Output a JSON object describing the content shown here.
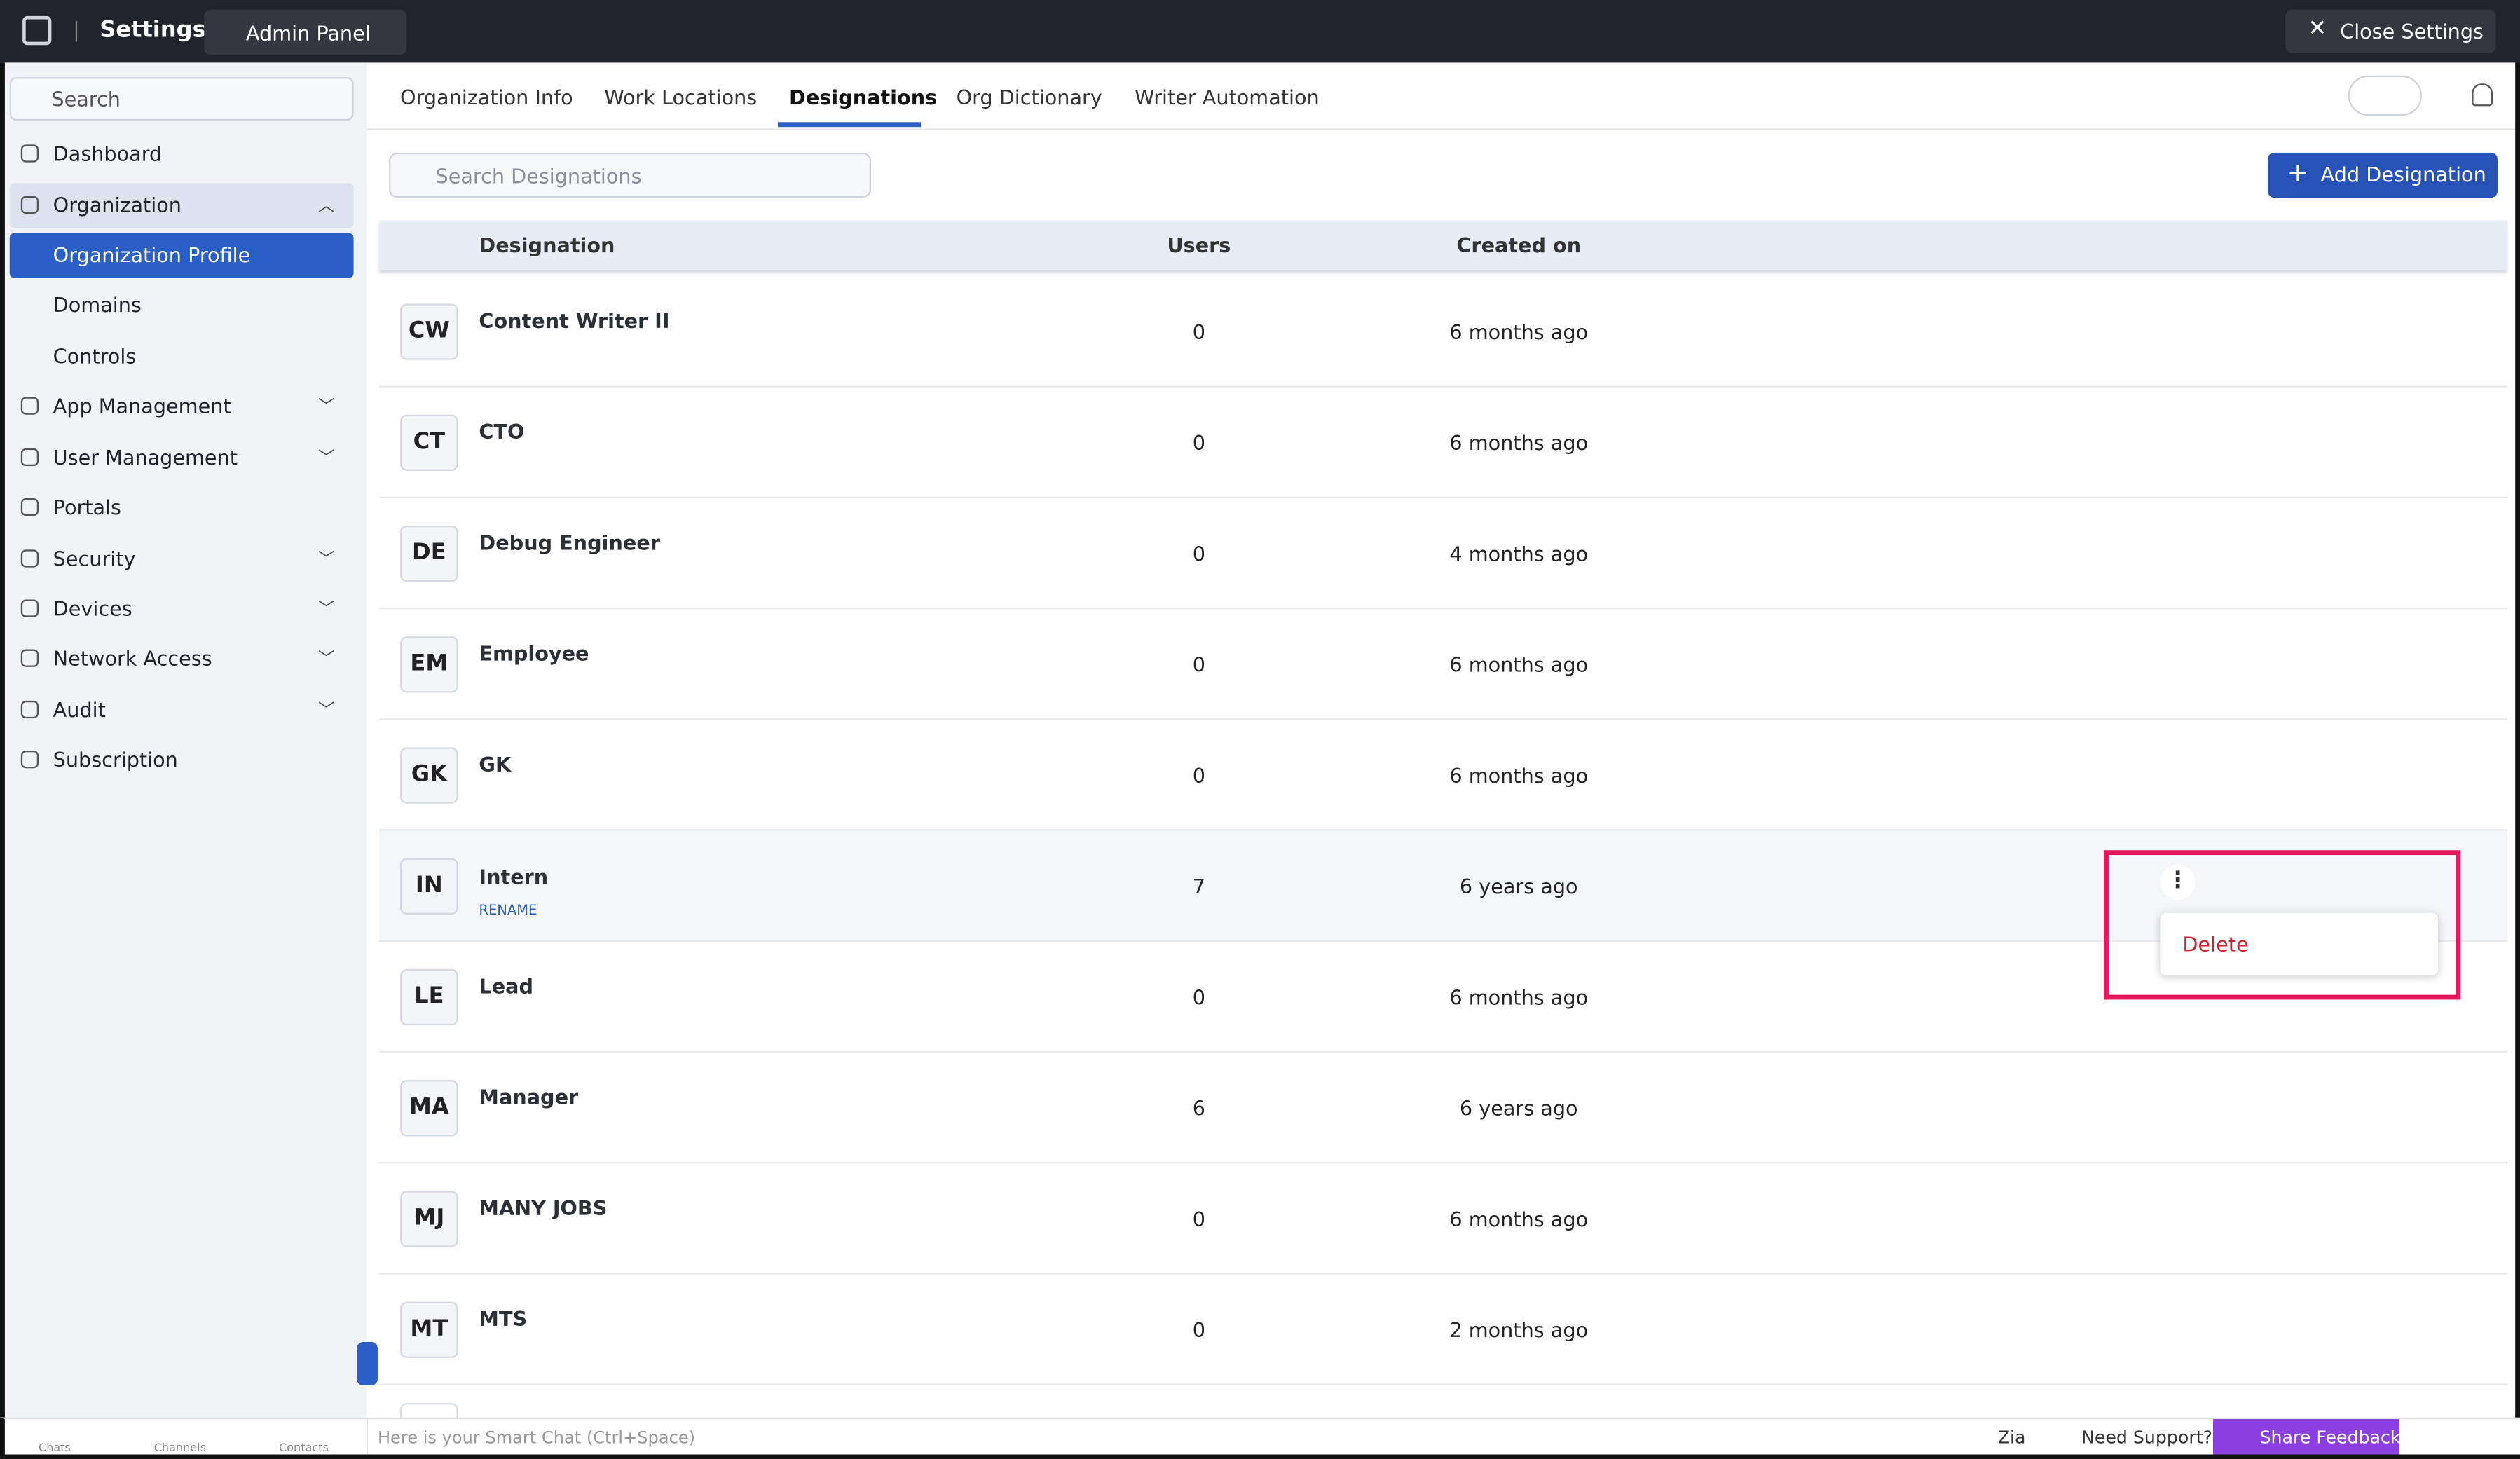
{
  "header": {
    "title": "Settings",
    "workspace": "Admin Panel",
    "close": "Close Settings"
  },
  "sidebar": {
    "search": "Search",
    "items": [
      "Dashboard",
      "Organization",
      "Organization Profile",
      "Domains",
      "Controls",
      "App Management",
      "User Management",
      "Portals",
      "Security",
      "Devices",
      "Network Access",
      "Audit",
      "Subscription"
    ]
  },
  "tabs": [
    "Organization Info",
    "Work Locations",
    "Designations",
    "Org Dictionary",
    "Writer Automation"
  ],
  "search_placeholder": "Search Designations",
  "add_button": "Add Designation",
  "table": {
    "columns": [
      "Designation",
      "Users",
      "Created on"
    ],
    "rows": [
      [
        "CW",
        "Content Writer II",
        0,
        "6 months ago"
      ],
      [
        "CT",
        "CTO",
        0,
        "6 months ago"
      ],
      [
        "DE",
        "Debug Engineer",
        0,
        "4 months ago"
      ],
      [
        "EM",
        "Employee",
        0,
        "6 months ago"
      ],
      [
        "GK",
        "GK",
        0,
        "6 months ago"
      ],
      [
        "IN",
        "Intern",
        7,
        "6 years ago"
      ],
      [
        "LE",
        "Lead",
        0,
        "6 months ago"
      ],
      [
        "MA",
        "Manager",
        6,
        "6 years ago"
      ],
      [
        "MJ",
        "MANY JOBS",
        0,
        "6 months ago"
      ],
      [
        "MT",
        "MTS",
        0,
        "2 months ago"
      ]
    ],
    "rename": "RENAME",
    "menu_item": "Delete"
  },
  "footer": {
    "apps": [
      "Chats",
      "Channels",
      "Contacts"
    ],
    "smart_chat": "Here is your Smart Chat (Ctrl+Space)",
    "zia": "Zia",
    "support": "Need Support?",
    "feedback": "Share Feedback"
  }
}
